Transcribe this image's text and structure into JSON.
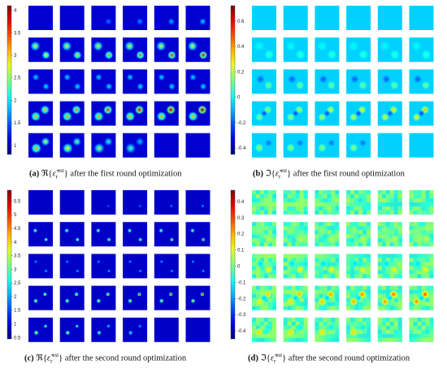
{
  "panels": [
    {
      "id": "a",
      "kind": "real",
      "round": 1,
      "caption_letter": "(a)",
      "caption_op": "ℜ{",
      "caption_sym": "ε̂",
      "caption_sub": "r",
      "caption_sup": "est",
      "caption_close": "}",
      "caption_text": " after the first round optimization",
      "colorbar_ticks": [
        "4",
        "3.5",
        "3",
        "2.5",
        "2",
        "1.5",
        "1"
      ],
      "colorbar_range": [
        0.8,
        4.1
      ],
      "colorbar_tick_values": [
        4,
        3.5,
        3,
        2.5,
        2,
        1.5,
        1
      ]
    },
    {
      "id": "b",
      "kind": "imag",
      "round": 1,
      "caption_letter": "(b)",
      "caption_op": "ℑ{",
      "caption_sym": "ε̂",
      "caption_sub": "r",
      "caption_sup": "est",
      "caption_close": "}",
      "caption_text": " after the first round optimization",
      "colorbar_ticks": [
        "0.6",
        "0.4",
        "0.2",
        "0",
        "-0.2",
        "-0.4"
      ],
      "colorbar_range": [
        -0.45,
        0.72
      ],
      "colorbar_tick_values": [
        0.6,
        0.4,
        0.2,
        0,
        -0.2,
        -0.4
      ]
    },
    {
      "id": "c",
      "kind": "real",
      "round": 2,
      "caption_letter": "(c)",
      "caption_op": "ℜ{",
      "caption_sym": "ε̂",
      "caption_sub": "r",
      "caption_sup": "est",
      "caption_close": "}",
      "caption_text": " after the second round optimization",
      "colorbar_ticks": [
        "5.5",
        "5",
        "4.5",
        "4",
        "3.5",
        "3",
        "2.5",
        "2",
        "1.5",
        "1",
        "0.5"
      ],
      "colorbar_range": [
        0.45,
        5.9
      ],
      "colorbar_tick_values": [
        5.5,
        5,
        4.5,
        4,
        3.5,
        3,
        2.5,
        2,
        1.5,
        1,
        0.5
      ]
    },
    {
      "id": "d",
      "kind": "imag",
      "round": 2,
      "caption_letter": "(d)",
      "caption_op": "ℑ{",
      "caption_sym": "ε̂",
      "caption_sub": "r",
      "caption_sup": "est",
      "caption_close": "}",
      "caption_text": " after the second round optimization",
      "colorbar_ticks": [
        "0.4",
        "0.3",
        "0.2",
        "0.1",
        "0",
        "-0.1",
        "-0.2",
        "-0.3",
        "-0.4"
      ],
      "colorbar_range": [
        -0.45,
        0.47
      ],
      "colorbar_tick_values": [
        0.4,
        0.3,
        0.2,
        0.1,
        0,
        -0.1,
        -0.2,
        -0.3,
        -0.4
      ]
    }
  ]
}
